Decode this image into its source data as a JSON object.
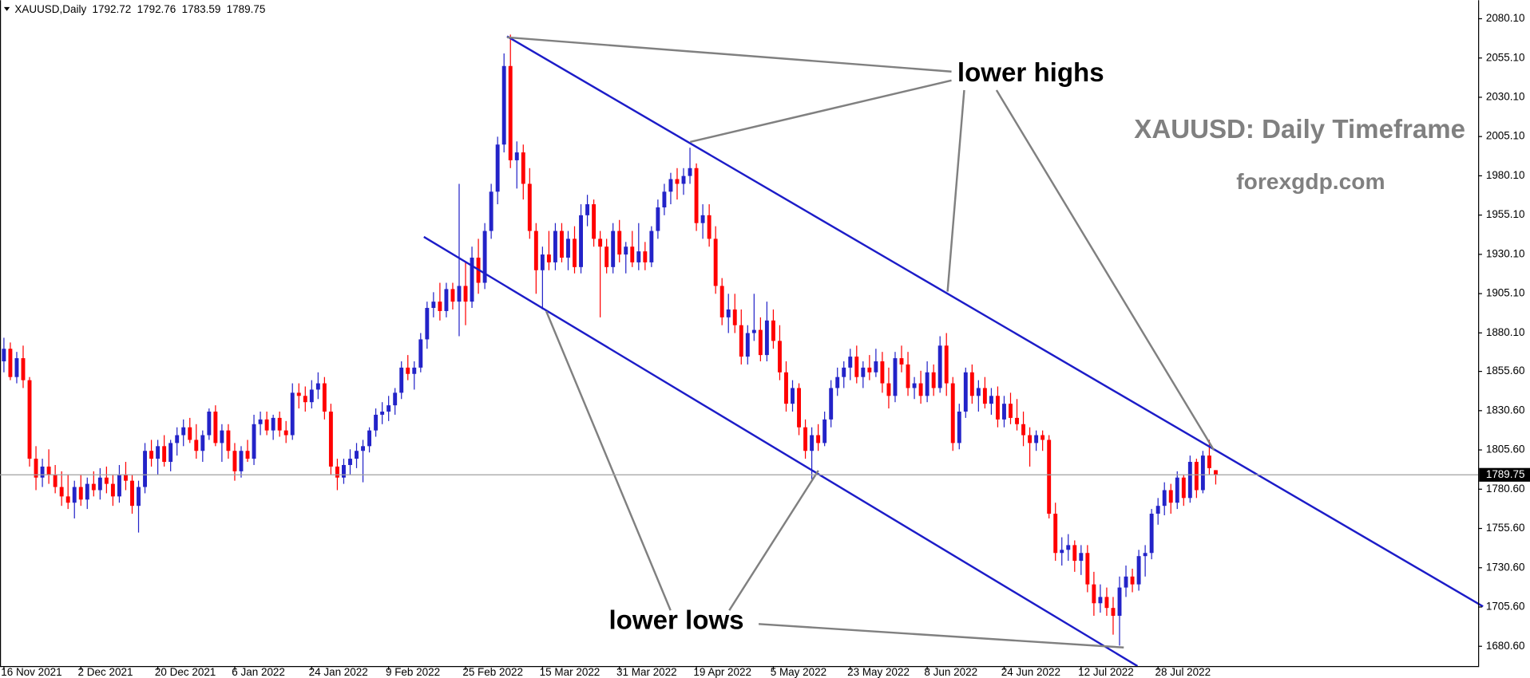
{
  "chart_data": {
    "type": "candlestick",
    "title": "XAUUSD,Daily",
    "annotations": [
      "lower highs",
      "lower lows",
      "XAUUSD: Daily Timeframe",
      "forexgdp.com"
    ],
    "bull_color": "#2323c8",
    "bear_color": "#ff0000",
    "ylim": [
      1668.0,
      2091.9
    ],
    "yticks": [
      {
        "value": 2080.1,
        "label": "2080.10"
      },
      {
        "value": 2055.1,
        "label": "2055.10"
      },
      {
        "value": 2030.1,
        "label": "2030.10"
      },
      {
        "value": 2005.1,
        "label": "2005.10"
      },
      {
        "value": 1980.1,
        "label": "1980.10"
      },
      {
        "value": 1955.1,
        "label": "1955.10"
      },
      {
        "value": 1930.1,
        "label": "1930.10"
      },
      {
        "value": 1905.1,
        "label": "1905.10"
      },
      {
        "value": 1880.1,
        "label": "1880.10"
      },
      {
        "value": 1855.6,
        "label": "1855.60"
      },
      {
        "value": 1830.6,
        "label": "1830.60"
      },
      {
        "value": 1805.6,
        "label": "1805.60"
      },
      {
        "value": 1780.6,
        "label": "1780.60"
      },
      {
        "value": 1755.6,
        "label": "1755.60"
      },
      {
        "value": 1730.6,
        "label": "1730.60"
      },
      {
        "value": 1705.6,
        "label": "1705.60"
      },
      {
        "value": 1680.6,
        "label": "1680.60"
      }
    ],
    "categories": [
      "16 Nov 2021",
      null,
      null,
      null,
      null,
      null,
      null,
      null,
      null,
      null,
      null,
      null,
      "2 Dec 2021",
      null,
      null,
      null,
      null,
      null,
      null,
      null,
      null,
      null,
      null,
      null,
      "20 Dec 2021",
      null,
      null,
      null,
      null,
      null,
      null,
      null,
      null,
      null,
      null,
      null,
      "6 Jan 2022",
      null,
      null,
      null,
      null,
      null,
      null,
      null,
      null,
      null,
      null,
      null,
      "24 Jan 2022",
      null,
      null,
      null,
      null,
      null,
      null,
      null,
      null,
      null,
      null,
      null,
      "9 Feb 2022",
      null,
      null,
      null,
      null,
      null,
      null,
      null,
      null,
      null,
      null,
      null,
      "25 Feb 2022",
      null,
      null,
      null,
      null,
      null,
      null,
      null,
      null,
      null,
      null,
      null,
      "15 Mar 2022",
      null,
      null,
      null,
      null,
      null,
      null,
      null,
      null,
      null,
      null,
      null,
      "31 Mar 2022",
      null,
      null,
      null,
      null,
      null,
      null,
      null,
      null,
      null,
      null,
      null,
      "19 Apr 2022",
      null,
      null,
      null,
      null,
      null,
      null,
      null,
      null,
      null,
      null,
      null,
      "5 May 2022",
      null,
      null,
      null,
      null,
      null,
      null,
      null,
      null,
      null,
      null,
      null,
      "23 May 2022",
      null,
      null,
      null,
      null,
      null,
      null,
      null,
      null,
      null,
      null,
      null,
      "8 Jun 2022",
      null,
      null,
      null,
      null,
      null,
      null,
      null,
      null,
      null,
      null,
      null,
      "24 Jun 2022",
      null,
      null,
      null,
      null,
      null,
      null,
      null,
      null,
      null,
      null,
      null,
      "12 Jul 2022",
      null,
      null,
      null,
      null,
      null,
      null,
      null,
      null,
      null,
      null,
      null,
      "28 Jul 2022",
      null,
      null,
      null,
      null,
      null,
      null,
      null,
      null,
      null
    ],
    "candles": [
      [
        1862,
        1877,
        1855,
        1870
      ],
      [
        1870,
        1874,
        1850,
        1852
      ],
      [
        1852,
        1868,
        1848,
        1864
      ],
      [
        1864,
        1872,
        1845,
        1850
      ],
      [
        1850,
        1852,
        1795,
        1800
      ],
      [
        1800,
        1808,
        1780,
        1788
      ],
      [
        1788,
        1800,
        1782,
        1795
      ],
      [
        1795,
        1806,
        1784,
        1790
      ],
      [
        1790,
        1796,
        1778,
        1782
      ],
      [
        1782,
        1792,
        1770,
        1776
      ],
      [
        1776,
        1790,
        1768,
        1772
      ],
      [
        1772,
        1786,
        1762,
        1782
      ],
      [
        1782,
        1790,
        1770,
        1774
      ],
      [
        1774,
        1788,
        1768,
        1784
      ],
      [
        1784,
        1792,
        1776,
        1780
      ],
      [
        1780,
        1794,
        1774,
        1788
      ],
      [
        1788,
        1795,
        1778,
        1784
      ],
      [
        1784,
        1790,
        1770,
        1776
      ],
      [
        1776,
        1796,
        1772,
        1790
      ],
      [
        1790,
        1798,
        1780,
        1786
      ],
      [
        1786,
        1790,
        1765,
        1770
      ],
      [
        1770,
        1786,
        1753,
        1782
      ],
      [
        1782,
        1810,
        1778,
        1805
      ],
      [
        1805,
        1812,
        1795,
        1800
      ],
      [
        1800,
        1812,
        1790,
        1808
      ],
      [
        1808,
        1815,
        1795,
        1798
      ],
      [
        1798,
        1812,
        1792,
        1810
      ],
      [
        1810,
        1820,
        1802,
        1815
      ],
      [
        1815,
        1825,
        1808,
        1820
      ],
      [
        1820,
        1826,
        1810,
        1812
      ],
      [
        1812,
        1822,
        1800,
        1805
      ],
      [
        1805,
        1818,
        1798,
        1815
      ],
      [
        1815,
        1832,
        1812,
        1830
      ],
      [
        1830,
        1834,
        1808,
        1810
      ],
      [
        1810,
        1822,
        1798,
        1818
      ],
      [
        1818,
        1822,
        1800,
        1805
      ],
      [
        1805,
        1810,
        1786,
        1792
      ],
      [
        1792,
        1808,
        1788,
        1805
      ],
      [
        1805,
        1812,
        1798,
        1800
      ],
      [
        1800,
        1828,
        1796,
        1822
      ],
      [
        1822,
        1830,
        1815,
        1825
      ],
      [
        1825,
        1830,
        1815,
        1818
      ],
      [
        1818,
        1828,
        1812,
        1826
      ],
      [
        1826,
        1830,
        1814,
        1818
      ],
      [
        1818,
        1824,
        1810,
        1815
      ],
      [
        1815,
        1848,
        1812,
        1842
      ],
      [
        1842,
        1848,
        1832,
        1840
      ],
      [
        1840,
        1846,
        1830,
        1836
      ],
      [
        1836,
        1850,
        1832,
        1844
      ],
      [
        1844,
        1855,
        1838,
        1848
      ],
      [
        1848,
        1852,
        1825,
        1830
      ],
      [
        1830,
        1835,
        1790,
        1795
      ],
      [
        1795,
        1800,
        1780,
        1788
      ],
      [
        1788,
        1800,
        1784,
        1796
      ],
      [
        1796,
        1806,
        1790,
        1800
      ],
      [
        1800,
        1810,
        1794,
        1805
      ],
      [
        1805,
        1812,
        1785,
        1808
      ],
      [
        1808,
        1820,
        1804,
        1818
      ],
      [
        1818,
        1832,
        1814,
        1828
      ],
      [
        1828,
        1836,
        1822,
        1830
      ],
      [
        1830,
        1840,
        1824,
        1834
      ],
      [
        1834,
        1845,
        1828,
        1842
      ],
      [
        1842,
        1862,
        1838,
        1858
      ],
      [
        1858,
        1866,
        1850,
        1854
      ],
      [
        1854,
        1862,
        1844,
        1858
      ],
      [
        1858,
        1880,
        1855,
        1876
      ],
      [
        1876,
        1900,
        1870,
        1896
      ],
      [
        1896,
        1906,
        1890,
        1900
      ],
      [
        1900,
        1912,
        1888,
        1894
      ],
      [
        1894,
        1912,
        1890,
        1908
      ],
      [
        1908,
        1912,
        1895,
        1900
      ],
      [
        1900,
        1975,
        1878,
        1910
      ],
      [
        1910,
        1925,
        1885,
        1900
      ],
      [
        1900,
        1935,
        1896,
        1928
      ],
      [
        1928,
        1940,
        1905,
        1912
      ],
      [
        1912,
        1950,
        1908,
        1945
      ],
      [
        1945,
        1975,
        1940,
        1970
      ],
      [
        1970,
        2005,
        1962,
        2000
      ],
      [
        2000,
        2058,
        1995,
        2050
      ],
      [
        2050,
        2070,
        1985,
        1990
      ],
      [
        1990,
        2002,
        1972,
        1995
      ],
      [
        1995,
        2000,
        1965,
        1975
      ],
      [
        1975,
        1985,
        1940,
        1945
      ],
      [
        1945,
        1950,
        1905,
        1920
      ],
      [
        1920,
        1935,
        1895,
        1930
      ],
      [
        1930,
        1945,
        1920,
        1925
      ],
      [
        1925,
        1950,
        1920,
        1945
      ],
      [
        1945,
        1950,
        1925,
        1928
      ],
      [
        1928,
        1945,
        1920,
        1940
      ],
      [
        1940,
        1948,
        1918,
        1922
      ],
      [
        1922,
        1962,
        1918,
        1955
      ],
      [
        1955,
        1968,
        1948,
        1962
      ],
      [
        1962,
        1965,
        1935,
        1940
      ],
      [
        1940,
        1945,
        1890,
        1935
      ],
      [
        1935,
        1940,
        1918,
        1922
      ],
      [
        1922,
        1950,
        1918,
        1945
      ],
      [
        1945,
        1952,
        1925,
        1930
      ],
      [
        1930,
        1938,
        1918,
        1935
      ],
      [
        1935,
        1945,
        1922,
        1925
      ],
      [
        1925,
        1950,
        1920,
        1932
      ],
      [
        1932,
        1938,
        1920,
        1925
      ],
      [
        1925,
        1948,
        1922,
        1945
      ],
      [
        1945,
        1965,
        1940,
        1960
      ],
      [
        1960,
        1975,
        1955,
        1970
      ],
      [
        1970,
        1982,
        1962,
        1978
      ],
      [
        1978,
        1985,
        1965,
        1975
      ],
      [
        1975,
        1985,
        1968,
        1980
      ],
      [
        1980,
        1998,
        1975,
        1985
      ],
      [
        1985,
        1988,
        1945,
        1950
      ],
      [
        1950,
        1962,
        1940,
        1955
      ],
      [
        1955,
        1962,
        1935,
        1940
      ],
      [
        1940,
        1948,
        1905,
        1910
      ],
      [
        1910,
        1915,
        1885,
        1890
      ],
      [
        1890,
        1905,
        1880,
        1895
      ],
      [
        1895,
        1905,
        1880,
        1885
      ],
      [
        1885,
        1895,
        1860,
        1865
      ],
      [
        1865,
        1885,
        1860,
        1880
      ],
      [
        1880,
        1905,
        1875,
        1882
      ],
      [
        1882,
        1890,
        1862,
        1866
      ],
      [
        1866,
        1900,
        1862,
        1888
      ],
      [
        1888,
        1895,
        1870,
        1875
      ],
      [
        1875,
        1885,
        1850,
        1855
      ],
      [
        1855,
        1862,
        1830,
        1835
      ],
      [
        1835,
        1850,
        1830,
        1845
      ],
      [
        1845,
        1848,
        1815,
        1820
      ],
      [
        1820,
        1825,
        1800,
        1805
      ],
      [
        1805,
        1820,
        1787,
        1815
      ],
      [
        1815,
        1822,
        1805,
        1810
      ],
      [
        1810,
        1830,
        1808,
        1825
      ],
      [
        1825,
        1850,
        1820,
        1845
      ],
      [
        1845,
        1858,
        1840,
        1852
      ],
      [
        1852,
        1862,
        1845,
        1858
      ],
      [
        1858,
        1870,
        1850,
        1865
      ],
      [
        1865,
        1872,
        1848,
        1852
      ],
      [
        1852,
        1862,
        1845,
        1858
      ],
      [
        1858,
        1866,
        1850,
        1855
      ],
      [
        1855,
        1870,
        1852,
        1862
      ],
      [
        1862,
        1868,
        1842,
        1848
      ],
      [
        1848,
        1858,
        1832,
        1840
      ],
      [
        1840,
        1868,
        1836,
        1864
      ],
      [
        1864,
        1872,
        1855,
        1860
      ],
      [
        1860,
        1868,
        1840,
        1845
      ],
      [
        1845,
        1852,
        1838,
        1848
      ],
      [
        1848,
        1856,
        1835,
        1840
      ],
      [
        1840,
        1862,
        1836,
        1855
      ],
      [
        1855,
        1860,
        1840,
        1845
      ],
      [
        1845,
        1878,
        1842,
        1872
      ],
      [
        1872,
        1880,
        1840,
        1848
      ],
      [
        1848,
        1852,
        1805,
        1810
      ],
      [
        1810,
        1835,
        1806,
        1830
      ],
      [
        1830,
        1858,
        1826,
        1855
      ],
      [
        1855,
        1860,
        1835,
        1840
      ],
      [
        1840,
        1850,
        1830,
        1845
      ],
      [
        1845,
        1852,
        1832,
        1835
      ],
      [
        1835,
        1845,
        1828,
        1840
      ],
      [
        1840,
        1846,
        1820,
        1825
      ],
      [
        1825,
        1840,
        1820,
        1835
      ],
      [
        1835,
        1842,
        1822,
        1826
      ],
      [
        1826,
        1838,
        1818,
        1822
      ],
      [
        1822,
        1830,
        1808,
        1815
      ],
      [
        1815,
        1820,
        1795,
        1810
      ],
      [
        1810,
        1818,
        1805,
        1815
      ],
      [
        1815,
        1818,
        1805,
        1812
      ],
      [
        1812,
        1815,
        1762,
        1765
      ],
      [
        1765,
        1772,
        1735,
        1740
      ],
      [
        1740,
        1750,
        1732,
        1742
      ],
      [
        1742,
        1752,
        1735,
        1745
      ],
      [
        1745,
        1748,
        1728,
        1735
      ],
      [
        1735,
        1745,
        1726,
        1740
      ],
      [
        1740,
        1745,
        1715,
        1720
      ],
      [
        1720,
        1728,
        1700,
        1708
      ],
      [
        1708,
        1720,
        1702,
        1712
      ],
      [
        1712,
        1718,
        1700,
        1705
      ],
      [
        1705,
        1712,
        1688,
        1700
      ],
      [
        1700,
        1725,
        1681,
        1718
      ],
      [
        1718,
        1732,
        1712,
        1725
      ],
      [
        1725,
        1730,
        1715,
        1720
      ],
      [
        1720,
        1742,
        1716,
        1738
      ],
      [
        1738,
        1745,
        1725,
        1740
      ],
      [
        1740,
        1768,
        1736,
        1765
      ],
      [
        1765,
        1775,
        1758,
        1770
      ],
      [
        1770,
        1785,
        1764,
        1780
      ],
      [
        1780,
        1784,
        1765,
        1772
      ],
      [
        1772,
        1792,
        1768,
        1788
      ],
      [
        1788,
        1790,
        1770,
        1775
      ],
      [
        1775,
        1802,
        1772,
        1798
      ],
      [
        1798,
        1800,
        1775,
        1780
      ],
      [
        1780,
        1805,
        1778,
        1802
      ],
      [
        1802,
        1812,
        1790,
        1794
      ],
      [
        1792.72,
        1792.76,
        1783.59,
        1789.75
      ]
    ]
  }
}
